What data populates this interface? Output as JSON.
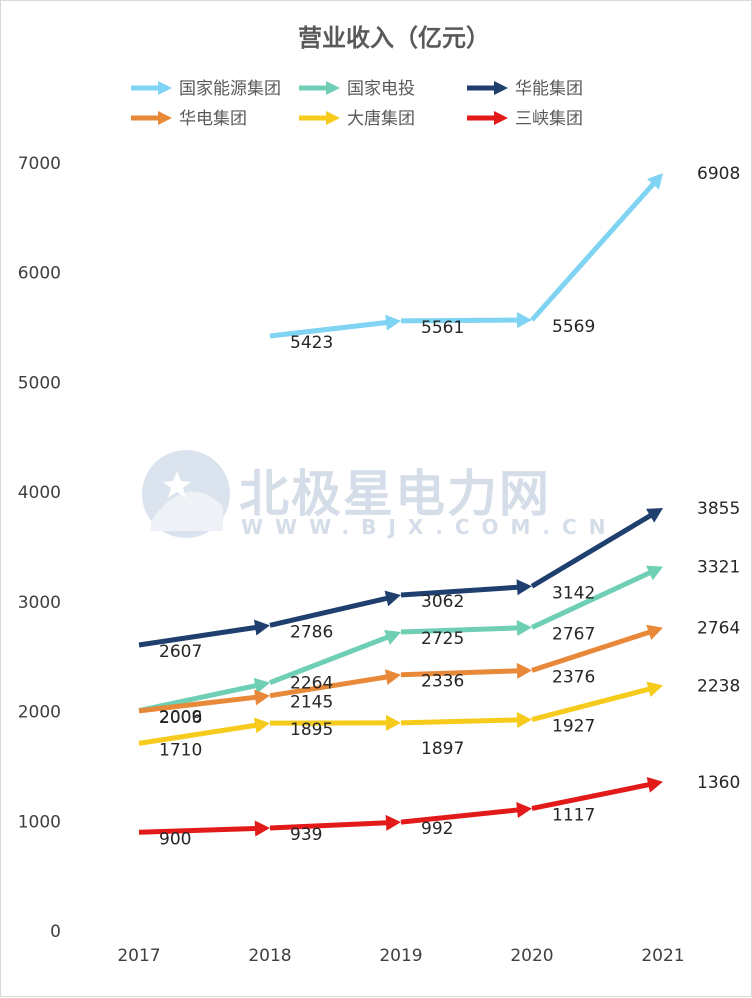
{
  "chart_data": {
    "type": "line",
    "title": "营业收入（亿元）",
    "categories": [
      "2017",
      "2018",
      "2019",
      "2020",
      "2021"
    ],
    "ylim": [
      0,
      7000
    ],
    "y_ticks": [
      "0",
      "1000",
      "2000",
      "3000",
      "4000",
      "5000",
      "6000",
      "7000"
    ],
    "grid": false,
    "legend_position": "top",
    "series": [
      {
        "name": "国家能源集团",
        "color": "#7fd3f3",
        "values": [
          null,
          5423,
          5561,
          5569,
          6908
        ]
      },
      {
        "name": "国家电投",
        "color": "#6fcfb5",
        "values": [
          2009,
          2264,
          2725,
          2767,
          3321
        ]
      },
      {
        "name": "华能集团",
        "color": "#1f3f6e",
        "values": [
          2607,
          2786,
          3062,
          3142,
          3855
        ]
      },
      {
        "name": "华电集团",
        "color": "#e8893a",
        "values": [
          2006,
          2145,
          2336,
          2376,
          2764
        ]
      },
      {
        "name": "大唐集团",
        "color": "#f6cb1b",
        "values": [
          1710,
          1895,
          1897,
          1927,
          2238
        ]
      },
      {
        "name": "三峡集团",
        "color": "#e31a1a",
        "values": [
          900,
          939,
          992,
          1117,
          1360
        ]
      }
    ]
  },
  "watermark": {
    "main": "北极星电力网",
    "sub": "WWW.BJX.COM.CN"
  }
}
